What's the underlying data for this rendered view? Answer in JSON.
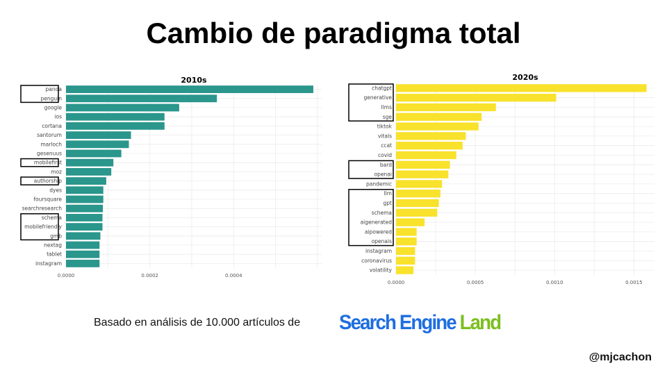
{
  "slide": {
    "title": "Cambio de paradigma total",
    "footer_text": "Basado en análisis de 10.000 artículos de",
    "logo_part1": "Search Engine",
    "logo_part2": "Land",
    "handle": "@mjcachon"
  },
  "colors": {
    "bar_2010s": "#2a968c",
    "bar_2020s": "#f8e22c",
    "grid": "#ebebeb"
  },
  "chart_data": [
    {
      "type": "bar",
      "orientation": "horizontal",
      "title": "2010s",
      "categories": [
        "panda",
        "penguin",
        "google",
        "ios",
        "cortana",
        "santorum",
        "marloch",
        "gesenuus",
        "mobilefirst",
        "moz",
        "authorship",
        "dyes",
        "foursquare",
        "searchresearch",
        "schema",
        "mobilefriendly",
        "gmb",
        "nextag",
        "tablet",
        "instagram"
      ],
      "values": [
        0.00059,
        0.00036,
        0.00027,
        0.000235,
        0.000235,
        0.000155,
        0.00015,
        0.000132,
        0.000113,
        0.000108,
        9.6e-05,
        8.9e-05,
        8.9e-05,
        8.8e-05,
        8.7e-05,
        8.7e-05,
        8.2e-05,
        8e-05,
        8e-05,
        8e-05
      ],
      "highlighted_groups": [
        [
          "panda",
          "penguin"
        ],
        [
          "mobilefirst"
        ],
        [
          "authorship"
        ],
        [
          "schema",
          "mobilefriendly",
          "gmb"
        ]
      ],
      "xlim": [
        0,
        0.00061
      ],
      "x_ticks": [
        "0.0000",
        "0.0002",
        "0.0004"
      ],
      "x_tick_values": [
        0,
        0.0002,
        0.0004
      ],
      "grid": true
    },
    {
      "type": "bar",
      "orientation": "horizontal",
      "title": "2020s",
      "categories": [
        "chatgpt",
        "generative",
        "llms",
        "sge",
        "tiktok",
        "vitals",
        "ccat",
        "covid",
        "bard",
        "openai",
        "pandemic",
        "llm",
        "gpt",
        "schema",
        "aigenerated",
        "aipowered",
        "openais",
        "instagram",
        "coronavirus",
        "volatility"
      ],
      "values": [
        0.00158,
        0.00101,
        0.00063,
        0.00054,
        0.00052,
        0.00044,
        0.00042,
        0.00038,
        0.00034,
        0.00033,
        0.00029,
        0.00028,
        0.00027,
        0.00026,
        0.00018,
        0.00013,
        0.00013,
        0.00012,
        0.00012,
        0.00011
      ],
      "highlighted_groups": [
        [
          "chatgpt",
          "generative",
          "llms",
          "sge"
        ],
        [
          "bard",
          "openai"
        ],
        [
          "llm",
          "gpt",
          "schema",
          "aigenerated",
          "aipowered",
          "openais"
        ]
      ],
      "xlim": [
        0,
        0.00163
      ],
      "x_ticks": [
        "0.0000",
        "0.0005",
        "0.0010",
        "0.0015"
      ],
      "x_tick_values": [
        0,
        0.0005,
        0.001,
        0.0015
      ],
      "grid": true
    }
  ]
}
